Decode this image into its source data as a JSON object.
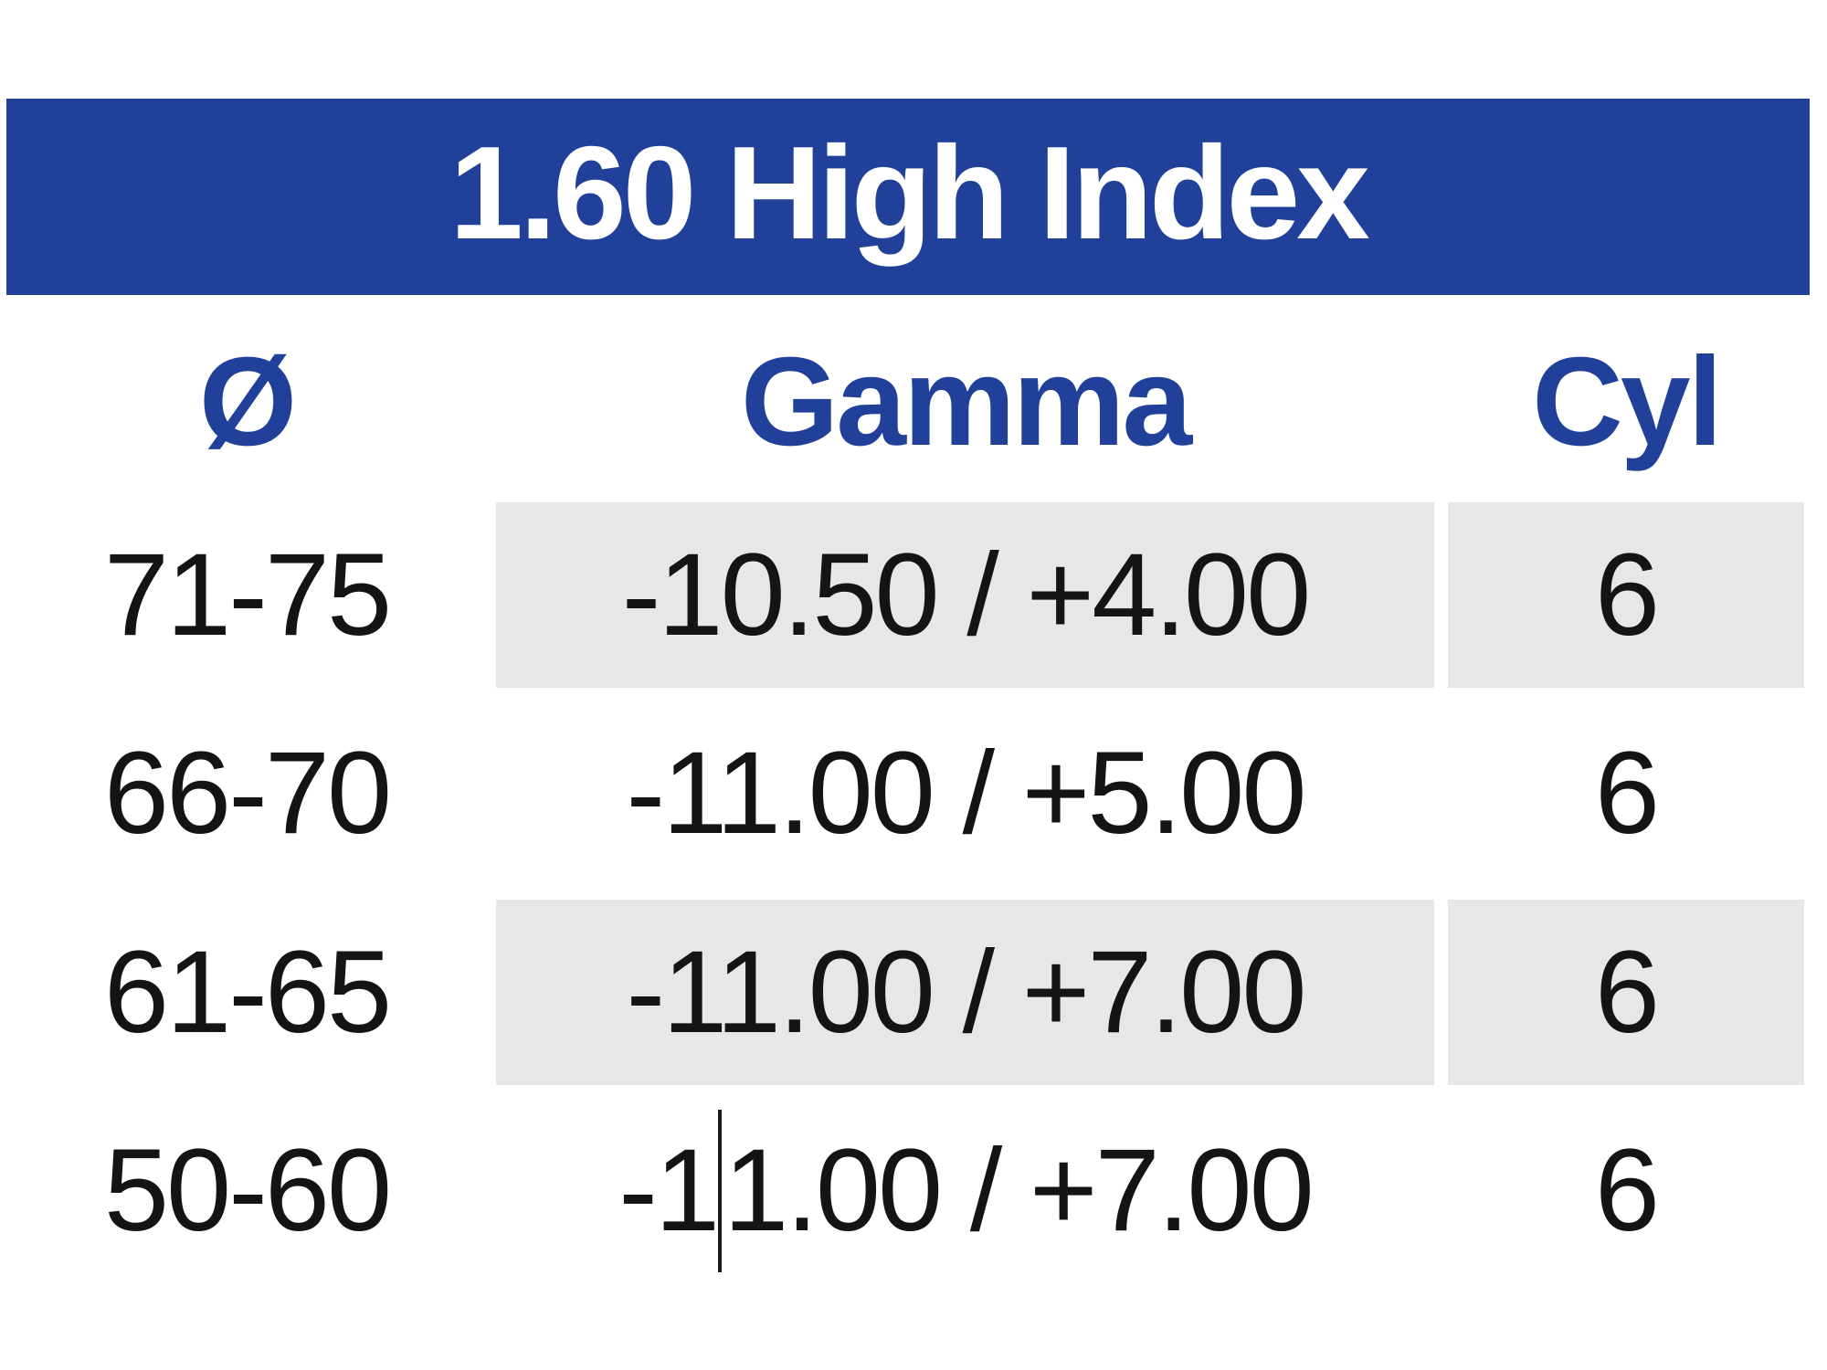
{
  "title": "1.60 High Index",
  "colors": {
    "banner_background": "#21409A",
    "banner_text": "#FFFFFF",
    "column_header_text": "#21409A",
    "row_shade": "#E7E7E7",
    "body_text": "#141414",
    "page_background": "#FFFFFF"
  },
  "table": {
    "columns": [
      {
        "key": "diameter",
        "label": "Ø"
      },
      {
        "key": "gamma",
        "label": "Gamma"
      },
      {
        "key": "cyl",
        "label": "Cyl"
      }
    ],
    "rows": [
      {
        "diameter": "71-75",
        "gamma": "-10.50 / +4.00",
        "cyl": "6",
        "shaded": true
      },
      {
        "diameter": "66-70",
        "gamma": "-11.00 / +5.00",
        "cyl": "6",
        "shaded": false
      },
      {
        "diameter": "61-65",
        "gamma": "-11.00 / +7.00",
        "cyl": "6",
        "shaded": true
      },
      {
        "diameter": "50-60",
        "gamma": "-11.00 / +7.00",
        "gamma_pre": "-1",
        "gamma_post": "1.00 / +7.00",
        "cyl": "6",
        "shaded": false,
        "caret": true
      }
    ]
  }
}
